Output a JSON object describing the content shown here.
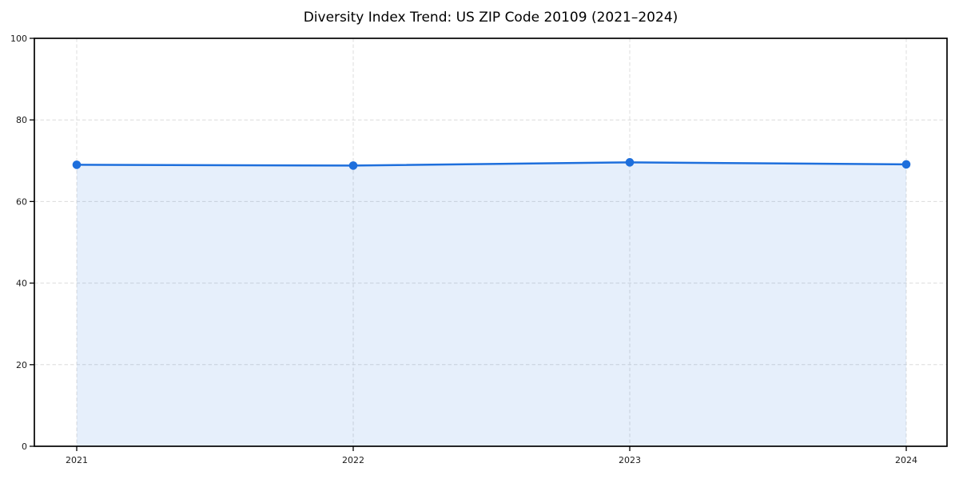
{
  "chart_data": {
    "type": "area",
    "title": "Diversity Index Trend: US ZIP Code 20109 (2021–2024)",
    "categories": [
      "2021",
      "2022",
      "2023",
      "2024"
    ],
    "series": [
      {
        "name": "Diversity Index",
        "values": [
          69.0,
          68.8,
          69.6,
          69.1
        ]
      }
    ],
    "ylim": [
      0,
      100
    ],
    "yticks": [
      0,
      20,
      40,
      60,
      80,
      100
    ],
    "grid": {
      "show": true,
      "style": "dashed",
      "axes": "both",
      "color": "#dcdcdc"
    },
    "legend": "none",
    "marker": "circle",
    "colors": {
      "line": "#1e6fdc",
      "marker": "#1e6fdc",
      "fill": "#1e6fdc",
      "fill_opacity": 0.11,
      "axis": "#000000",
      "tick_label": "#1a1a1a",
      "background": "#ffffff"
    }
  }
}
